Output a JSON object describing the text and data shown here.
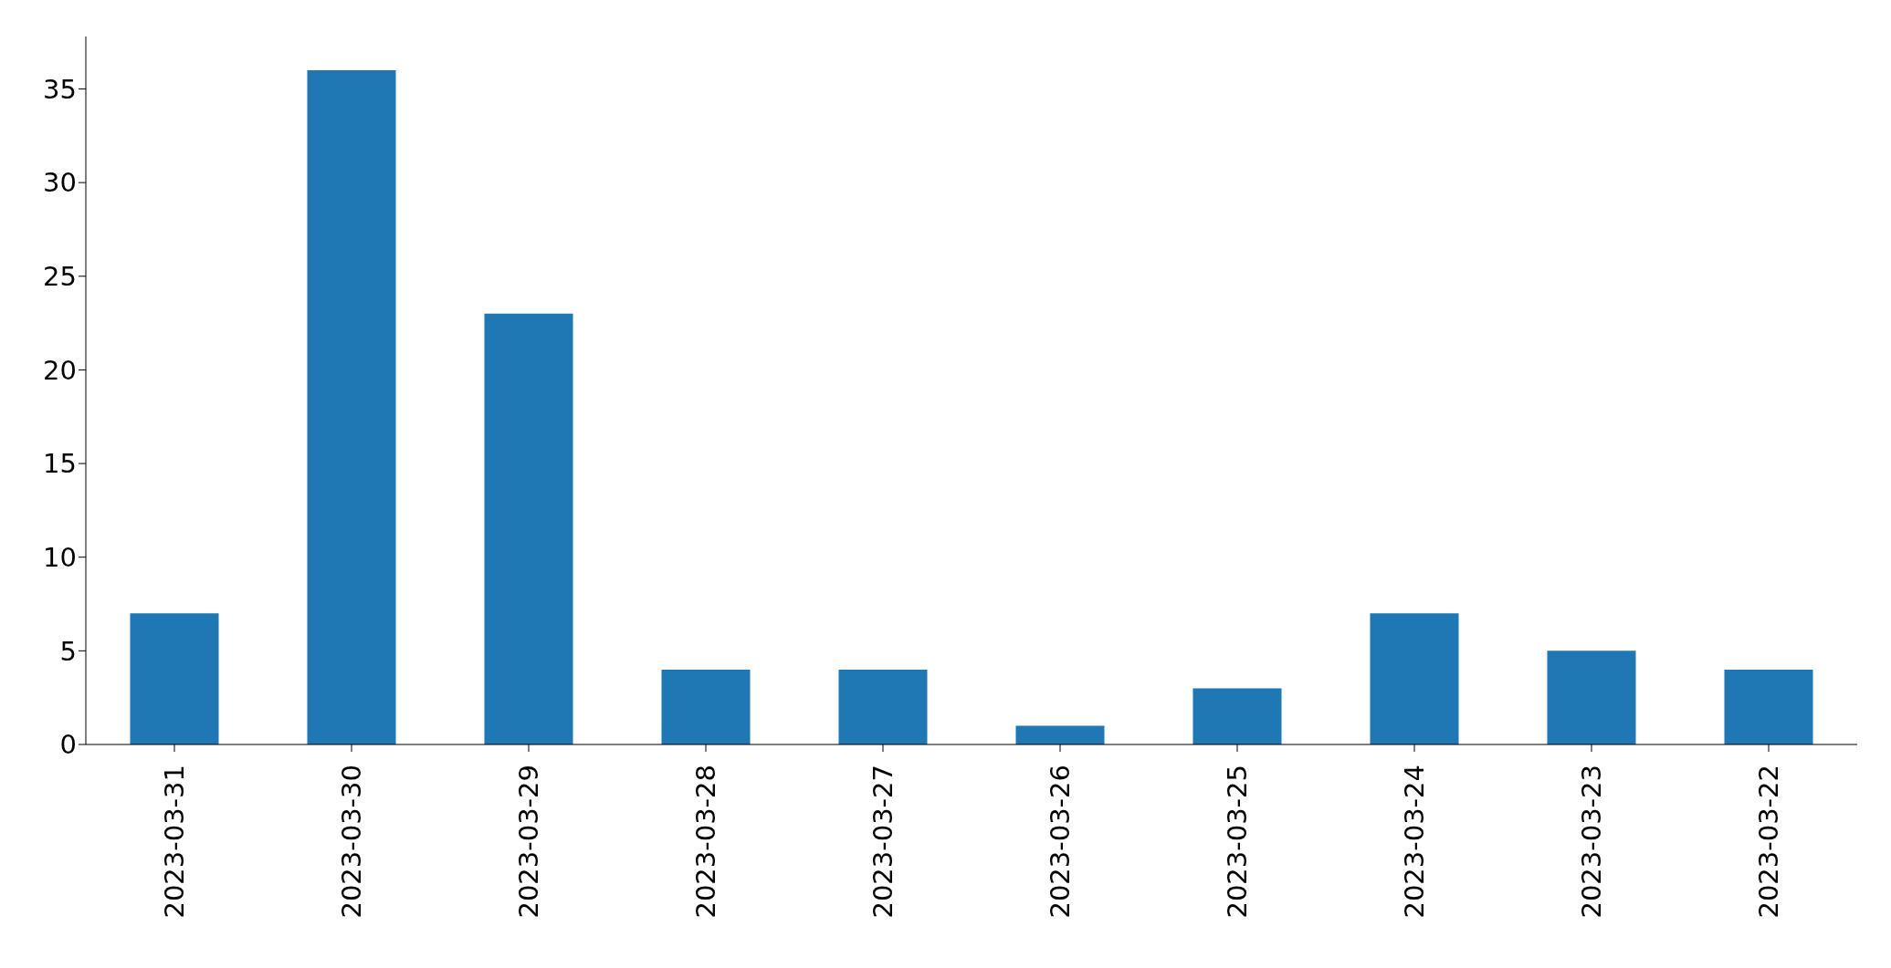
{
  "chart_data": {
    "type": "bar",
    "categories": [
      "2023-03-31",
      "2023-03-30",
      "2023-03-29",
      "2023-03-28",
      "2023-03-27",
      "2023-03-26",
      "2023-03-25",
      "2023-03-24",
      "2023-03-23",
      "2023-03-22"
    ],
    "values": [
      7,
      36,
      23,
      4,
      4,
      1,
      3,
      7,
      5,
      4
    ],
    "color": "#1f77b4",
    "ylim": [
      0,
      37.8
    ],
    "yticks": [
      0,
      5,
      10,
      15,
      20,
      25,
      30,
      35
    ]
  }
}
